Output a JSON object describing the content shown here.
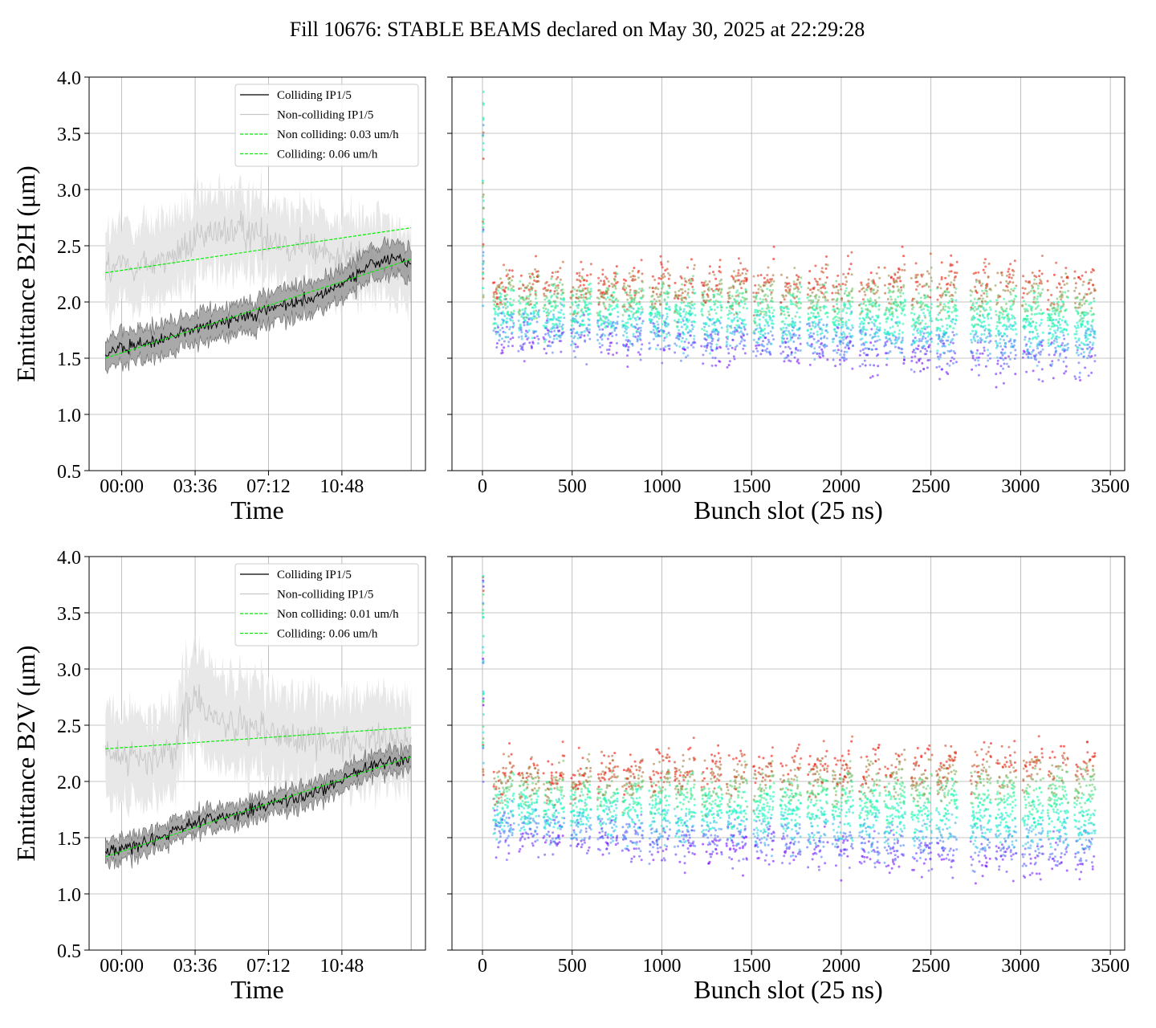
{
  "title": "Fill 10676: STABLE BEAMS declared on May 30, 2025 at 22:29:28",
  "colors": {
    "colliding": "#000000",
    "noncolliding": "#c8c8c8",
    "fit": "#00ee00",
    "band_colliding": "#9a9a9a",
    "band_noncolliding": "#e8e8e8"
  },
  "chart_data": [
    {
      "id": "b2h-time",
      "type": "line",
      "xlabel": "Time",
      "ylabel": "Emittance B2H (μm)",
      "ylim": [
        0.5,
        4.0
      ],
      "yticks": [
        0.5,
        1.0,
        1.5,
        2.0,
        2.5,
        3.0,
        3.5,
        4.0
      ],
      "xlim_hours": [
        -1.6,
        14.9
      ],
      "xtick_hours": [
        0,
        3.6,
        7.2,
        10.8
      ],
      "xticklabels": [
        "00:00",
        "03:36",
        "07:12",
        "10:48"
      ],
      "grid": true,
      "legend_position": "top-right",
      "legend": [
        "Colliding IP1/5",
        "Non-colliding IP1/5",
        "Non colliding: 0.03 um/h",
        "Colliding: 0.06 um/h"
      ],
      "series": [
        {
          "name": "Colliding IP1/5",
          "x": [
            -0.8,
            0.5,
            1.5,
            2.5,
            3.5,
            4.5,
            5.5,
            6.5,
            7.5,
            8.5,
            9.5,
            10.5,
            11.5,
            12.5,
            13.5,
            14.2
          ],
          "y": [
            1.55,
            1.6,
            1.65,
            1.7,
            1.75,
            1.8,
            1.85,
            1.9,
            1.95,
            2.0,
            2.05,
            2.12,
            2.25,
            2.35,
            2.4,
            2.35
          ],
          "band": 0.14
        },
        {
          "name": "Non-colliding IP1/5",
          "x": [
            -0.8,
            0.5,
            1.5,
            2.5,
            3.5,
            4.5,
            5.5,
            6.5,
            7.5,
            8.5,
            9.5,
            10.5,
            11.5,
            12.5,
            13.5,
            14.2
          ],
          "y": [
            2.3,
            2.32,
            2.35,
            2.4,
            2.5,
            2.6,
            2.65,
            2.6,
            2.55,
            2.5,
            2.45,
            2.4,
            2.4,
            2.4,
            2.35,
            2.35
          ],
          "band": 0.35
        },
        {
          "name": "Non colliding: 0.03 um/h",
          "x": [
            -0.8,
            14.2
          ],
          "y": [
            2.26,
            2.66
          ]
        },
        {
          "name": "Colliding: 0.06 um/h",
          "x": [
            -0.8,
            14.2
          ],
          "y": [
            1.5,
            2.38
          ]
        }
      ]
    },
    {
      "id": "b2h-bunch",
      "type": "scatter",
      "xlabel": "Bunch slot (25 ns)",
      "ylim": [
        0.5,
        4.0
      ],
      "yticks": [
        0.5,
        1.0,
        1.5,
        2.0,
        2.5,
        3.0,
        3.5,
        4.0
      ],
      "xlim": [
        -170,
        3580
      ],
      "xticks": [
        0,
        500,
        1000,
        1500,
        2000,
        2500,
        3000,
        3500
      ],
      "grid": true,
      "colormap": "rainbow",
      "trains_start": [
        60,
        200,
        340,
        490,
        640,
        780,
        930,
        1070,
        1220,
        1360,
        1510,
        1660,
        1810,
        1950,
        2100,
        2240,
        2390,
        2530,
        2720,
        2860,
        3010,
        3150,
        3300
      ],
      "train_length_slots": 115,
      "low_start": 1.68,
      "low_end": 1.42,
      "high_start": 2.1,
      "high_end": 2.15,
      "spread": 0.32
    },
    {
      "id": "b2v-time",
      "type": "line",
      "xlabel": "Time",
      "ylabel": "Emittance B2V (μm)",
      "ylim": [
        0.5,
        4.0
      ],
      "yticks": [
        0.5,
        1.0,
        1.5,
        2.0,
        2.5,
        3.0,
        3.5,
        4.0
      ],
      "xlim_hours": [
        -1.6,
        14.9
      ],
      "xtick_hours": [
        0,
        3.6,
        7.2,
        10.8
      ],
      "xticklabels": [
        "00:00",
        "03:36",
        "07:12",
        "10:48"
      ],
      "grid": true,
      "legend_position": "top-right",
      "legend": [
        "Colliding IP1/5",
        "Non-colliding IP1/5",
        "Non colliding: 0.01 um/h",
        "Colliding: 0.06 um/h"
      ],
      "series": [
        {
          "name": "Colliding IP1/5",
          "x": [
            -0.8,
            0.5,
            1.5,
            2.5,
            3.5,
            4.5,
            5.5,
            6.5,
            7.5,
            8.5,
            9.5,
            10.5,
            11.5,
            12.5,
            13.5,
            14.2
          ],
          "y": [
            1.38,
            1.42,
            1.48,
            1.55,
            1.62,
            1.66,
            1.7,
            1.75,
            1.8,
            1.85,
            1.9,
            1.98,
            2.08,
            2.15,
            2.18,
            2.2
          ],
          "band": 0.1
        },
        {
          "name": "Non-colliding IP1/5",
          "x": [
            -0.8,
            0.5,
            1.5,
            2.5,
            3.5,
            4.5,
            5.5,
            6.5,
            7.5,
            8.5,
            9.5,
            10.5,
            11.5,
            12.5,
            13.5,
            14.2
          ],
          "y": [
            2.25,
            2.22,
            2.2,
            2.3,
            2.75,
            2.6,
            2.5,
            2.45,
            2.42,
            2.4,
            2.38,
            2.36,
            2.35,
            2.35,
            2.35,
            2.35
          ],
          "band": 0.4
        },
        {
          "name": "Non colliding: 0.01 um/h",
          "x": [
            -0.8,
            14.2
          ],
          "y": [
            2.29,
            2.48
          ]
        },
        {
          "name": "Colliding: 0.06 um/h",
          "x": [
            -0.8,
            14.2
          ],
          "y": [
            1.33,
            2.22
          ]
        }
      ]
    },
    {
      "id": "b2v-bunch",
      "type": "scatter",
      "xlabel": "Bunch slot (25 ns)",
      "ylim": [
        0.5,
        4.0
      ],
      "yticks": [
        0.5,
        1.0,
        1.5,
        2.0,
        2.5,
        3.0,
        3.5,
        4.0
      ],
      "xlim": [
        -170,
        3580
      ],
      "xticks": [
        0,
        500,
        1000,
        1500,
        2000,
        2500,
        3000,
        3500
      ],
      "grid": true,
      "colormap": "rainbow",
      "trains_start": [
        60,
        200,
        340,
        490,
        640,
        780,
        930,
        1070,
        1220,
        1360,
        1510,
        1660,
        1810,
        1950,
        2100,
        2240,
        2390,
        2530,
        2720,
        2860,
        3010,
        3150,
        3300
      ],
      "train_length_slots": 115,
      "low_start": 1.5,
      "low_end": 1.22,
      "high_start": 2.0,
      "high_end": 2.15,
      "spread": 0.3
    }
  ]
}
